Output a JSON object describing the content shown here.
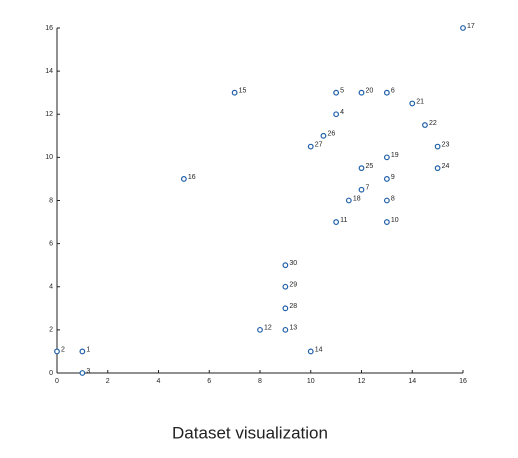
{
  "chart_data": {
    "type": "scatter",
    "title": "Dataset visualization",
    "x": [
      1,
      0,
      1,
      11,
      11,
      13,
      12,
      13,
      13,
      13,
      11,
      8,
      9,
      10,
      7,
      5,
      16,
      11.5,
      13,
      12,
      14,
      14.5,
      15,
      15,
      12,
      10.5,
      10,
      9,
      9,
      9
    ],
    "values": [
      1,
      1,
      0,
      12,
      13,
      13,
      8.5,
      8,
      9,
      7,
      7,
      2,
      2,
      1,
      13,
      9,
      16,
      8,
      10,
      13,
      12.5,
      11.5,
      10.5,
      9.5,
      9.5,
      11,
      10.5,
      3,
      4,
      5
    ],
    "point_labels": [
      "1",
      "2",
      "3",
      "4",
      "5",
      "6",
      "7",
      "8",
      "9",
      "10",
      "11",
      "12",
      "13",
      "14",
      "15",
      "16",
      "17",
      "18",
      "19",
      "20",
      "21",
      "22",
      "23",
      "24",
      "25",
      "26",
      "27",
      "28",
      "29",
      "30"
    ],
    "color": "#1f5fa8",
    "xlim": [
      0,
      16
    ],
    "ylim": [
      0,
      16
    ],
    "xticks": [
      0,
      2,
      4,
      6,
      8,
      10,
      12,
      14,
      16
    ],
    "yticks": [
      0,
      2,
      4,
      6,
      8,
      10,
      12,
      14,
      16
    ],
    "grid": false
  }
}
